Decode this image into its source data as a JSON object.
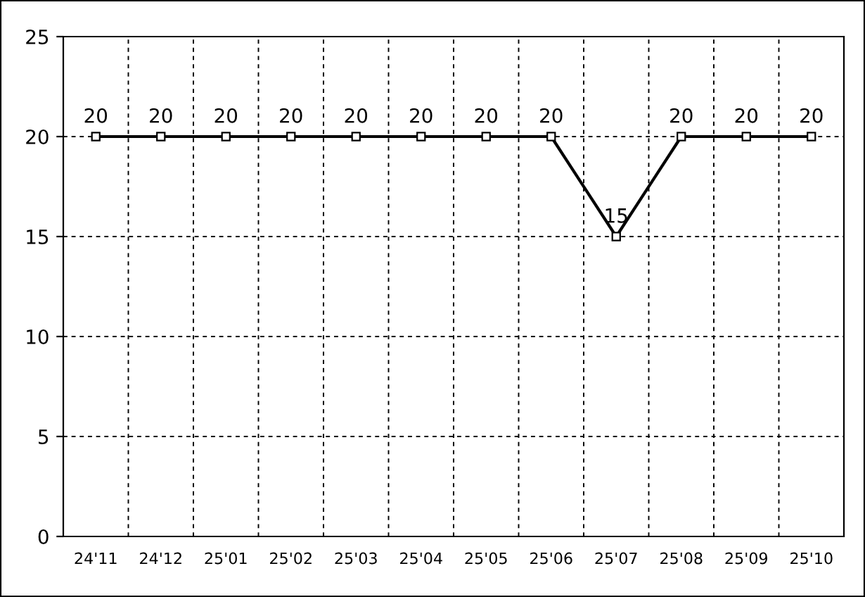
{
  "chart_data": {
    "type": "line",
    "categories": [
      "24'11",
      "24'12",
      "25'01",
      "25'02",
      "25'03",
      "25'04",
      "25'05",
      "25'06",
      "25'07",
      "25'08",
      "25'09",
      "25'10"
    ],
    "series": [
      {
        "color": "#000000",
        "values": [
          20,
          20,
          20,
          20,
          20,
          20,
          20,
          20,
          15,
          20,
          20,
          20
        ]
      }
    ],
    "ylim": [
      0,
      25
    ],
    "yticks": [
      0,
      5,
      10,
      15,
      20,
      25
    ],
    "grid": true,
    "marker": "square",
    "line_style": "solid",
    "data_labels": true
  }
}
